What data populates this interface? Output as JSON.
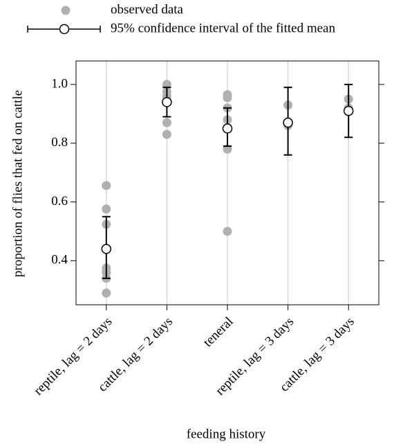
{
  "chart_data": {
    "type": "dot-errorbar",
    "x_label": "feeding history",
    "y_label": "proportion of flies that fed on cattle",
    "categories": [
      "reptile, lag = 2 days",
      "cattle, lag = 2 days",
      "teneral",
      "reptile, lag = 3 days",
      "cattle, lag = 3 days"
    ],
    "ylim": [
      0.25,
      1.08
    ],
    "yticks": [
      0.4,
      0.6,
      0.8,
      {
        "value": 1,
        "label": "1.0"
      }
    ],
    "grid": true,
    "series": [
      {
        "name": "observed data",
        "color": "#b0b0b0",
        "values": [
          [
            0.656,
            0.576,
            0.524,
            0.375,
            0.36,
            0.34,
            0.29
          ],
          [
            1.0,
            0.975,
            0.96,
            0.87,
            0.83
          ],
          [
            0.965,
            0.955,
            0.92,
            0.88,
            0.85,
            0.78,
            0.5
          ],
          [
            0.93,
            0.86
          ],
          [
            0.95,
            0.92
          ]
        ]
      },
      {
        "name": "95% confidence interval of the fitted mean",
        "color": "#000000",
        "values": [
          0.44,
          0.94,
          0.85,
          0.87,
          0.91
        ],
        "lower": [
          0.34,
          0.89,
          0.79,
          0.76,
          0.82
        ],
        "upper": [
          0.55,
          0.99,
          0.92,
          0.99,
          1.0
        ]
      }
    ]
  }
}
